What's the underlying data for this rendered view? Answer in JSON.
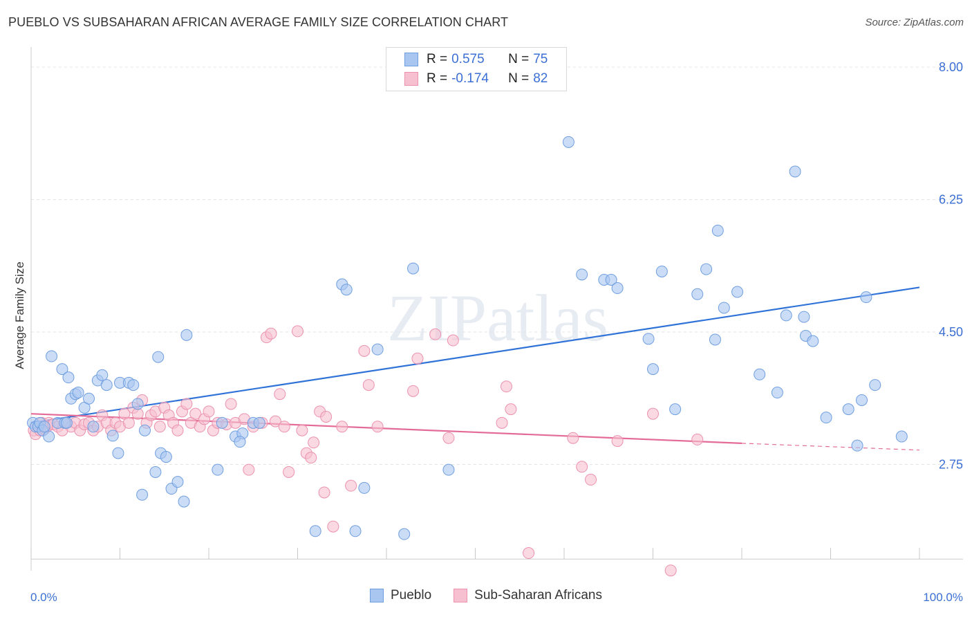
{
  "header": {
    "title": "PUEBLO VS SUBSAHARAN AFRICAN AVERAGE FAMILY SIZE CORRELATION CHART",
    "source": "Source: ZipAtlas.com"
  },
  "colors": {
    "pueblo_fill": "#a9c6f0",
    "pueblo_stroke": "#6f9ee0",
    "pueblo_line": "#2f72d8",
    "african_fill": "#f7c0d0",
    "african_stroke": "#ec91ae",
    "african_line": "#e36b98",
    "tick_label": "#3b6fd4"
  },
  "legend": {
    "rows": [
      {
        "r_label": "R =",
        "r_value": "0.575",
        "n_label": "N =",
        "n_value": "75"
      },
      {
        "r_label": "R =",
        "r_value": "-0.174",
        "n_label": "N =",
        "n_value": "82"
      }
    ]
  },
  "bottom_legend": [
    "Pueblo",
    "Sub-Saharan Africans"
  ],
  "watermark": "ZIPatlas",
  "chart_data": {
    "type": "scatter",
    "title": "PUEBLO VS SUBSAHARAN AFRICAN AVERAGE FAMILY SIZE CORRELATION CHART",
    "xlabel": "",
    "ylabel": "Average Family Size",
    "xlim": [
      0,
      100
    ],
    "ylim": [
      1.5,
      8.2
    ],
    "x_tick_labels": [
      "0.0%",
      "100.0%"
    ],
    "y_ticks": [
      2.75,
      4.5,
      6.25,
      8.0
    ],
    "y_tick_labels": [
      "2.75",
      "4.50",
      "6.25",
      "8.00"
    ],
    "grid": "horizontal dashed",
    "legend_position": "top-center",
    "series": [
      {
        "name": "Pueblo",
        "stats": {
          "R": 0.575,
          "N": 75
        },
        "trend": {
          "x": [
            0,
            100
          ],
          "y": [
            3.3,
            5.09
          ]
        },
        "points": [
          [
            0.2,
            3.3
          ],
          [
            0.5,
            3.25
          ],
          [
            0.8,
            3.25
          ],
          [
            1,
            3.3
          ],
          [
            1.3,
            3.2
          ],
          [
            1.5,
            3.25
          ],
          [
            2,
            3.12
          ],
          [
            2.3,
            4.18
          ],
          [
            3,
            3.3
          ],
          [
            3.5,
            4.01
          ],
          [
            3.8,
            3.3
          ],
          [
            4,
            3.3
          ],
          [
            4.2,
            3.9
          ],
          [
            4.5,
            3.62
          ],
          [
            5,
            3.68
          ],
          [
            5.3,
            3.7
          ],
          [
            6,
            3.5
          ],
          [
            6.5,
            3.62
          ],
          [
            7,
            3.25
          ],
          [
            7.5,
            3.86
          ],
          [
            8,
            3.93
          ],
          [
            8.5,
            3.8
          ],
          [
            9.2,
            3.13
          ],
          [
            9.8,
            2.9
          ],
          [
            10,
            3.83
          ],
          [
            11,
            3.83
          ],
          [
            11.5,
            3.8
          ],
          [
            12,
            3.55
          ],
          [
            12.5,
            2.35
          ],
          [
            12.8,
            3.2
          ],
          [
            14.3,
            4.17
          ],
          [
            14,
            2.65
          ],
          [
            14.6,
            2.9
          ],
          [
            15.2,
            2.85
          ],
          [
            15.8,
            2.43
          ],
          [
            16.5,
            2.52
          ],
          [
            17.2,
            2.26
          ],
          [
            17.5,
            4.46
          ],
          [
            21,
            2.68
          ],
          [
            21.5,
            3.3
          ],
          [
            23,
            3.12
          ],
          [
            23.8,
            3.16
          ],
          [
            23.5,
            3.05
          ],
          [
            25,
            3.3
          ],
          [
            25.7,
            3.3
          ],
          [
            32,
            1.87
          ],
          [
            35,
            5.13
          ],
          [
            35.5,
            5.06
          ],
          [
            36.5,
            1.87
          ],
          [
            37.5,
            2.44
          ],
          [
            39,
            4.27
          ],
          [
            42,
            1.83
          ],
          [
            43,
            5.34
          ],
          [
            47,
            2.68
          ],
          [
            60.5,
            7.01
          ],
          [
            62,
            5.26
          ],
          [
            64.5,
            5.19
          ],
          [
            65.3,
            5.19
          ],
          [
            66,
            5.08
          ],
          [
            69.5,
            4.41
          ],
          [
            70,
            4.01
          ],
          [
            71,
            5.3
          ],
          [
            72.5,
            3.48
          ],
          [
            75,
            5.0
          ],
          [
            76,
            5.33
          ],
          [
            77,
            4.4
          ],
          [
            77.3,
            5.84
          ],
          [
            78,
            4.82
          ],
          [
            79.5,
            5.03
          ],
          [
            82,
            3.94
          ],
          [
            84,
            3.7
          ],
          [
            85,
            4.72
          ],
          [
            86,
            6.62
          ],
          [
            87,
            4.7
          ],
          [
            87.2,
            4.45
          ],
          [
            88,
            4.38
          ],
          [
            89.5,
            3.37
          ],
          [
            92,
            3.48
          ],
          [
            93,
            3.0
          ],
          [
            95,
            3.8
          ],
          [
            98,
            3.12
          ],
          [
            93.5,
            3.6
          ],
          [
            94,
            4.96
          ]
        ]
      },
      {
        "name": "Sub-Saharan Africans",
        "stats": {
          "R": -0.174,
          "N": 82
        },
        "trend": {
          "x": [
            0,
            80
          ],
          "y": [
            3.42,
            3.03
          ]
        },
        "trend_dashed": {
          "x": [
            80,
            100
          ],
          "y": [
            3.03,
            2.94
          ]
        },
        "points": [
          [
            0.3,
            3.2
          ],
          [
            0.5,
            3.15
          ],
          [
            0.8,
            3.25
          ],
          [
            1,
            3.2
          ],
          [
            1.2,
            3.3
          ],
          [
            1.5,
            3.22
          ],
          [
            1.8,
            3.25
          ],
          [
            2,
            3.3
          ],
          [
            2.5,
            3.28
          ],
          [
            3,
            3.25
          ],
          [
            3.5,
            3.2
          ],
          [
            4,
            3.3
          ],
          [
            4.5,
            3.25
          ],
          [
            5,
            3.3
          ],
          [
            5.5,
            3.2
          ],
          [
            6,
            3.28
          ],
          [
            6.5,
            3.3
          ],
          [
            7,
            3.2
          ],
          [
            7.5,
            3.25
          ],
          [
            8,
            3.4
          ],
          [
            8.5,
            3.3
          ],
          [
            9,
            3.2
          ],
          [
            9.5,
            3.3
          ],
          [
            10,
            3.25
          ],
          [
            10.5,
            3.42
          ],
          [
            11,
            3.3
          ],
          [
            11.5,
            3.5
          ],
          [
            12,
            3.42
          ],
          [
            12.5,
            3.6
          ],
          [
            13,
            3.3
          ],
          [
            13.5,
            3.4
          ],
          [
            14,
            3.45
          ],
          [
            14.5,
            3.25
          ],
          [
            15,
            3.5
          ],
          [
            15.5,
            3.4
          ],
          [
            16,
            3.3
          ],
          [
            16.5,
            3.2
          ],
          [
            17,
            3.45
          ],
          [
            17.5,
            3.55
          ],
          [
            18,
            3.3
          ],
          [
            18.5,
            3.42
          ],
          [
            19,
            3.25
          ],
          [
            19.5,
            3.35
          ],
          [
            20,
            3.45
          ],
          [
            20.5,
            3.2
          ],
          [
            21,
            3.3
          ],
          [
            22,
            3.28
          ],
          [
            22.5,
            3.55
          ],
          [
            23,
            3.3
          ],
          [
            24,
            3.35
          ],
          [
            24.5,
            2.68
          ],
          [
            25,
            3.25
          ],
          [
            26,
            3.3
          ],
          [
            26.5,
            4.43
          ],
          [
            27,
            4.48
          ],
          [
            27.5,
            3.32
          ],
          [
            28,
            3.68
          ],
          [
            28.5,
            3.25
          ],
          [
            29,
            2.65
          ],
          [
            30,
            4.51
          ],
          [
            30.5,
            3.2
          ],
          [
            31,
            2.9
          ],
          [
            31.5,
            2.84
          ],
          [
            31.8,
            3.04
          ],
          [
            32.5,
            3.45
          ],
          [
            33.2,
            3.38
          ],
          [
            35,
            3.25
          ],
          [
            36,
            2.47
          ],
          [
            37.5,
            4.25
          ],
          [
            38,
            3.8
          ],
          [
            39,
            3.25
          ],
          [
            43,
            3.72
          ],
          [
            43.5,
            4.15
          ],
          [
            45.5,
            4.47
          ],
          [
            47,
            3.1
          ],
          [
            47.5,
            4.39
          ],
          [
            53,
            3.3
          ],
          [
            53.5,
            3.78
          ],
          [
            54,
            3.48
          ],
          [
            56,
            1.58
          ],
          [
            61,
            3.1
          ],
          [
            62,
            2.72
          ],
          [
            63,
            2.55
          ],
          [
            66,
            3.06
          ],
          [
            70,
            3.42
          ],
          [
            72,
            1.35
          ],
          [
            75,
            3.08
          ],
          [
            33,
            2.38
          ],
          [
            34,
            1.93
          ]
        ]
      }
    ]
  }
}
